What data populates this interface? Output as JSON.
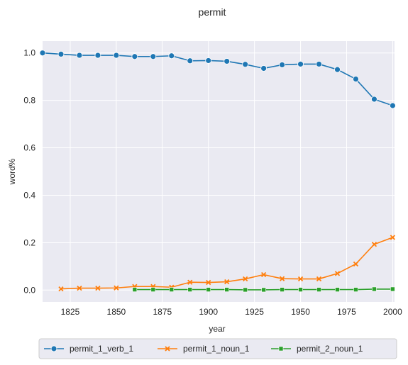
{
  "chart_data": {
    "type": "line",
    "title": "permit",
    "xlabel": "year",
    "ylabel": "word%",
    "xlim": [
      1810,
      2001
    ],
    "ylim": [
      -0.05,
      1.05
    ],
    "xticks": [
      1825,
      1850,
      1875,
      1900,
      1925,
      1950,
      1975,
      2000
    ],
    "yticks": [
      0.0,
      0.2,
      0.4,
      0.6,
      0.8,
      1.0
    ],
    "xtick_labels": [
      "1825",
      "1850",
      "1875",
      "1900",
      "1925",
      "1950",
      "1975",
      "2000"
    ],
    "ytick_labels": [
      "0.0",
      "0.2",
      "0.4",
      "0.6",
      "0.8",
      "1.0"
    ],
    "grid": true,
    "legend_position": "bottom",
    "series": [
      {
        "name": "permit_1_verb_1",
        "color": "#1f77b4",
        "marker": "circle",
        "x": [
          1810,
          1820,
          1830,
          1840,
          1850,
          1860,
          1870,
          1880,
          1890,
          1900,
          1910,
          1920,
          1930,
          1940,
          1950,
          1960,
          1970,
          1980,
          1990,
          2000
        ],
        "y": [
          1.0,
          0.995,
          0.99,
          0.99,
          0.99,
          0.985,
          0.985,
          0.988,
          0.967,
          0.968,
          0.965,
          0.952,
          0.935,
          0.95,
          0.953,
          0.953,
          0.93,
          0.89,
          0.805,
          0.778
        ]
      },
      {
        "name": "permit_1_noun_1",
        "color": "#ff7f0e",
        "marker": "x",
        "x": [
          1820,
          1830,
          1840,
          1850,
          1860,
          1870,
          1880,
          1890,
          1900,
          1910,
          1920,
          1930,
          1940,
          1950,
          1960,
          1970,
          1980,
          1990,
          2000
        ],
        "y": [
          0.005,
          0.008,
          0.008,
          0.009,
          0.015,
          0.015,
          0.012,
          0.033,
          0.032,
          0.035,
          0.047,
          0.065,
          0.048,
          0.047,
          0.047,
          0.07,
          0.11,
          0.193,
          0.222
        ]
      },
      {
        "name": "permit_2_noun_1",
        "color": "#2ca02c",
        "marker": "square",
        "x": [
          1860,
          1870,
          1880,
          1890,
          1900,
          1910,
          1920,
          1930,
          1940,
          1950,
          1960,
          1970,
          1980,
          1990,
          2000
        ],
        "y": [
          0.002,
          0.002,
          0.002,
          0.002,
          0.002,
          0.002,
          0.001,
          0.001,
          0.002,
          0.002,
          0.002,
          0.002,
          0.002,
          0.004,
          0.004
        ]
      }
    ]
  }
}
